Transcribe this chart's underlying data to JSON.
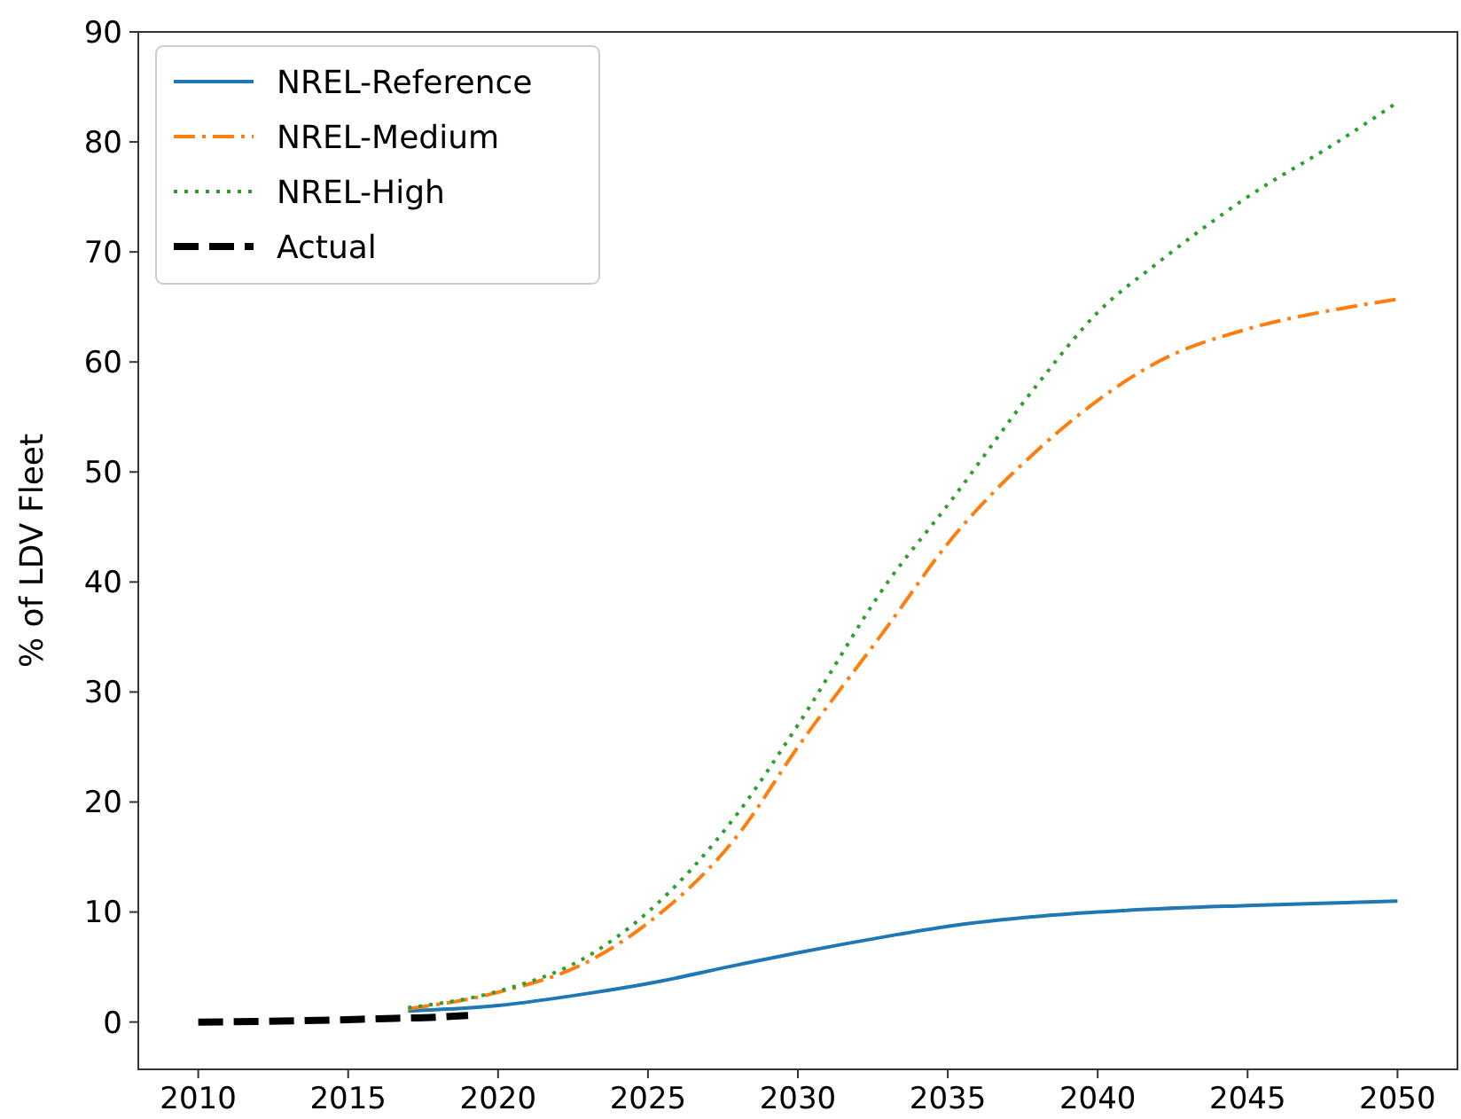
{
  "chart_data": {
    "type": "line",
    "ylabel": "% of LDV Fleet",
    "xlim": [
      2008,
      2052
    ],
    "ylim": [
      -4.3,
      90
    ],
    "xticks": [
      2010,
      2015,
      2020,
      2025,
      2030,
      2035,
      2040,
      2045,
      2050
    ],
    "yticks": [
      0,
      10,
      20,
      30,
      40,
      50,
      60,
      70,
      80,
      90
    ],
    "legend": "top left",
    "grid": false,
    "series": [
      {
        "name": "NREL-Reference",
        "color": "#1f77b4",
        "line_style": "solid",
        "x": [
          2017,
          2020,
          2023,
          2025,
          2028,
          2030,
          2033,
          2035,
          2038,
          2040,
          2045,
          2050
        ],
        "values": [
          1.0,
          1.5,
          2.6,
          3.5,
          5.2,
          6.3,
          7.8,
          8.7,
          9.6,
          10.0,
          10.6,
          11.0
        ]
      },
      {
        "name": "NREL-Medium",
        "color": "#ff7f0e",
        "line_style": "dashdot",
        "x": [
          2017,
          2020,
          2023,
          2025,
          2028,
          2030,
          2033,
          2035,
          2038,
          2040,
          2042,
          2045,
          2048,
          2050
        ],
        "values": [
          1.2,
          2.7,
          5.5,
          9,
          17,
          25,
          36,
          43.5,
          52,
          56.5,
          60,
          63,
          64.8,
          65.7
        ]
      },
      {
        "name": "NREL-High",
        "color": "#2ca02c",
        "line_style": "dotted",
        "x": [
          2017,
          2020,
          2023,
          2025,
          2028,
          2030,
          2033,
          2035,
          2038,
          2040,
          2042,
          2045,
          2048,
          2050
        ],
        "values": [
          1.3,
          2.8,
          6,
          10,
          19,
          27,
          40,
          47,
          58,
          64.5,
          69,
          75,
          80,
          83.6
        ]
      },
      {
        "name": "Actual",
        "color": "#000000",
        "line_style": "dashed",
        "x": [
          2010,
          2012,
          2014,
          2016,
          2018,
          2019
        ],
        "values": [
          0,
          0.05,
          0.15,
          0.3,
          0.45,
          0.6
        ]
      }
    ]
  }
}
